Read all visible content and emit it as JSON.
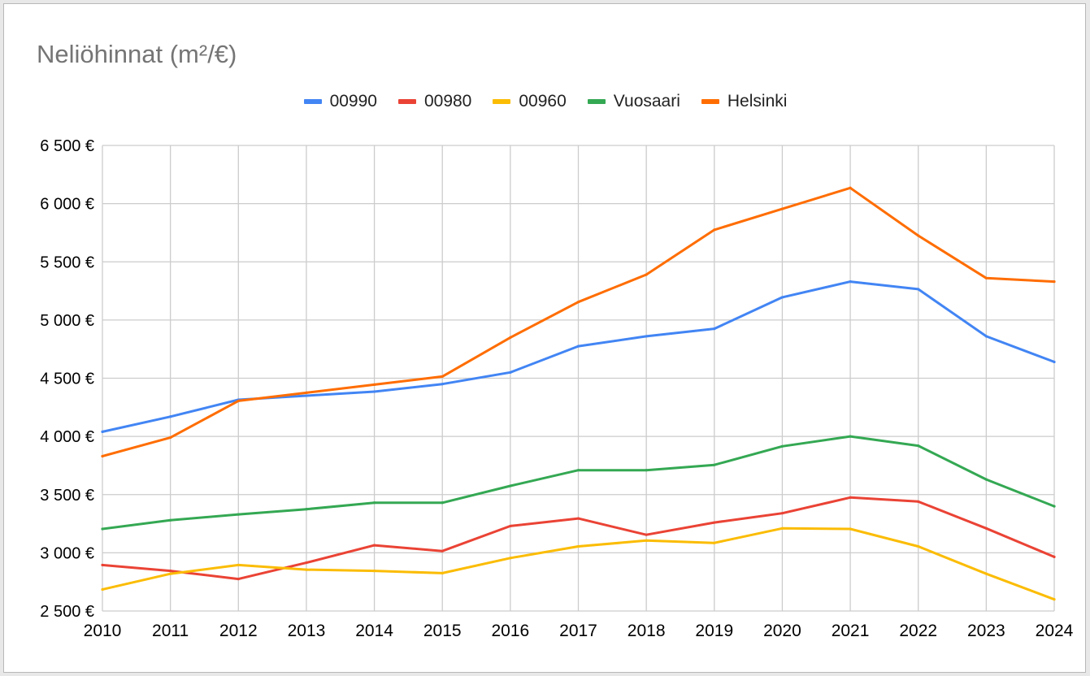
{
  "chart_data": {
    "type": "line",
    "title": "Neliöhinnat (m²/€)",
    "xlabel": "",
    "ylabel": "",
    "x": [
      "2010",
      "2011",
      "2012",
      "2013",
      "2014",
      "2015",
      "2016",
      "2017",
      "2018",
      "2019",
      "2020",
      "2021",
      "2022",
      "2023",
      "2024"
    ],
    "ylim": [
      2500,
      6500
    ],
    "y_ticks": [
      2500,
      3000,
      3500,
      4000,
      4500,
      5000,
      5500,
      6000,
      6500
    ],
    "y_tick_labels": [
      "2 500 €",
      "3 000 €",
      "3 500 €",
      "4 000 €",
      "4 500 €",
      "5 000 €",
      "5 500 €",
      "6 000 €",
      "6 500 €"
    ],
    "grid": true,
    "legend_position": "top",
    "series": [
      {
        "name": "00990",
        "color": "#4285f4",
        "values": [
          4040,
          4170,
          4315,
          4350,
          4385,
          4450,
          4550,
          4775,
          4860,
          4925,
          5195,
          5330,
          5265,
          4860,
          4640
        ]
      },
      {
        "name": "00980",
        "color": "#ea4335",
        "values": [
          2895,
          2845,
          2775,
          2915,
          3065,
          3015,
          3230,
          3295,
          3155,
          3260,
          3340,
          3475,
          3440,
          3210,
          2965
        ]
      },
      {
        "name": "00960",
        "color": "#fbbc04",
        "values": [
          2685,
          2820,
          2895,
          2855,
          2845,
          2825,
          2955,
          3055,
          3105,
          3085,
          3210,
          3205,
          3055,
          2820,
          2600
        ]
      },
      {
        "name": "Vuosaari",
        "color": "#34a853",
        "values": [
          3205,
          3280,
          3330,
          3375,
          3430,
          3430,
          3575,
          3710,
          3710,
          3755,
          3915,
          4000,
          3920,
          3630,
          3400
        ]
      },
      {
        "name": "Helsinki",
        "color": "#ff6d01",
        "values": [
          3830,
          3990,
          4305,
          4375,
          4445,
          4515,
          4850,
          5155,
          5390,
          5775,
          5955,
          6135,
          5725,
          5360,
          5330
        ]
      }
    ]
  }
}
